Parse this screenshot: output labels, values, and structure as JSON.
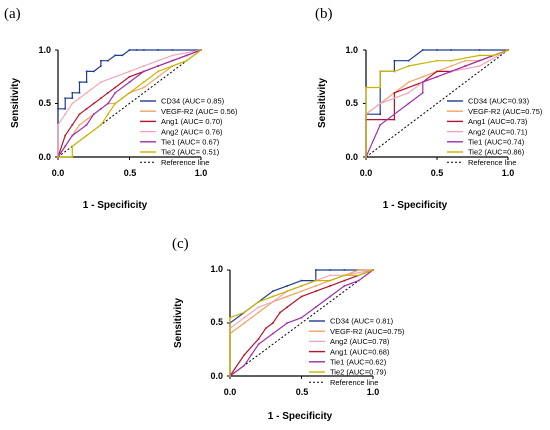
{
  "chart_data": [
    {
      "panel": "(a)",
      "type": "line",
      "xlabel": "1 - Specificity",
      "ylabel": "Sensitivity",
      "xlim": [
        0,
        1
      ],
      "ylim": [
        0,
        1
      ],
      "xticks": [
        "0.0",
        "0.5",
        "1.0"
      ],
      "yticks": [
        "0.0",
        "0.5",
        "1.0"
      ],
      "legend_position": "lower-right",
      "reference_line": "Reference line",
      "series": [
        {
          "name": "CD34 (AUC= 0.85)",
          "color": "#1f3a93",
          "x": [
            0,
            0,
            0.05,
            0.05,
            0.1,
            0.1,
            0.15,
            0.15,
            0.2,
            0.2,
            0.25,
            0.3,
            0.3,
            0.35,
            0.4,
            0.45,
            0.5,
            0.55,
            0.6,
            0.7,
            0.8,
            1.0
          ],
          "y": [
            0,
            0.45,
            0.45,
            0.55,
            0.55,
            0.6,
            0.6,
            0.7,
            0.7,
            0.8,
            0.8,
            0.85,
            0.9,
            0.9,
            0.95,
            0.95,
            1.0,
            1.0,
            1.0,
            1.0,
            1.0,
            1.0
          ]
        },
        {
          "name": "VEGF-R2 (AUC= 0.56)",
          "color": "#f4a261",
          "x": [
            0,
            0.05,
            0.1,
            0.15,
            0.2,
            0.25,
            0.3,
            0.35,
            0.4,
            0.45,
            0.5,
            0.6,
            0.7,
            0.8,
            0.9,
            1.0
          ],
          "y": [
            0,
            0.1,
            0.2,
            0.3,
            0.35,
            0.4,
            0.45,
            0.5,
            0.5,
            0.55,
            0.6,
            0.65,
            0.75,
            0.85,
            0.9,
            1.0
          ]
        },
        {
          "name": "Ang1  (AUC= 0.70)",
          "color": "#b5122b",
          "x": [
            0,
            0.05,
            0.1,
            0.15,
            0.2,
            0.25,
            0.3,
            0.35,
            0.4,
            0.5,
            0.6,
            0.7,
            0.8,
            0.9,
            1.0
          ],
          "y": [
            0,
            0.2,
            0.3,
            0.4,
            0.45,
            0.5,
            0.55,
            0.6,
            0.65,
            0.75,
            0.8,
            0.85,
            0.9,
            0.95,
            1.0
          ]
        },
        {
          "name": "Ang2  (AUC= 0.76)",
          "color": "#f2a5b8",
          "x": [
            0,
            0,
            0.05,
            0.1,
            0.15,
            0.2,
            0.3,
            0.4,
            0.5,
            0.6,
            0.7,
            0.8,
            1.0
          ],
          "y": [
            0,
            0.3,
            0.4,
            0.5,
            0.55,
            0.6,
            0.7,
            0.75,
            0.8,
            0.85,
            0.9,
            0.95,
            1.0
          ]
        },
        {
          "name": "Tie1  (AUC= 0.67)",
          "color": "#9b30b0",
          "x": [
            0,
            0.05,
            0.1,
            0.2,
            0.25,
            0.3,
            0.35,
            0.4,
            0.5,
            0.6,
            0.7,
            0.8,
            1.0
          ],
          "y": [
            0,
            0.1,
            0.2,
            0.3,
            0.4,
            0.45,
            0.5,
            0.6,
            0.7,
            0.8,
            0.85,
            0.9,
            1.0
          ]
        },
        {
          "name": "Tie2  (AUC= 0.51)",
          "color": "#c8b400",
          "x": [
            0,
            0.1,
            0.1,
            0.2,
            0.3,
            0.35,
            0.4,
            0.5,
            0.6,
            0.7,
            0.8,
            0.9,
            1.0
          ],
          "y": [
            0,
            0,
            0.1,
            0.2,
            0.3,
            0.4,
            0.5,
            0.6,
            0.7,
            0.8,
            0.85,
            0.9,
            1.0
          ]
        }
      ]
    },
    {
      "panel": "(b)",
      "type": "line",
      "xlabel": "1 - Specificity",
      "ylabel": "Sensitivity",
      "xlim": [
        0,
        1
      ],
      "ylim": [
        0,
        1
      ],
      "xticks": [
        "0.0",
        "0.5",
        "1.0"
      ],
      "yticks": [
        "0.0",
        "0.5",
        "1.0"
      ],
      "legend_position": "lower-right",
      "reference_line": "Reference line",
      "series": [
        {
          "name": "CD34 (AUC=0.93)",
          "color": "#1f3a93",
          "x": [
            0,
            0,
            0.1,
            0.1,
            0.2,
            0.2,
            0.3,
            0.4,
            0.5,
            0.6,
            0.8,
            1.0
          ],
          "y": [
            0,
            0.4,
            0.4,
            0.8,
            0.8,
            0.9,
            0.9,
            1.0,
            1.0,
            1.0,
            1.0,
            1.0
          ]
        },
        {
          "name": "VEGF-R2 (AUC=0.75)",
          "color": "#f4a261",
          "x": [
            0,
            0,
            0.1,
            0.2,
            0.3,
            0.4,
            0.5,
            0.6,
            0.7,
            0.8,
            0.9,
            1.0
          ],
          "y": [
            0,
            0.4,
            0.5,
            0.6,
            0.7,
            0.75,
            0.8,
            0.85,
            0.9,
            0.9,
            0.95,
            1.0
          ]
        },
        {
          "name": "Ang1  (AUC=0.73)",
          "color": "#b5122b",
          "x": [
            0,
            0,
            0.2,
            0.2,
            0.4,
            0.5,
            0.6,
            0.7,
            0.8,
            1.0
          ],
          "y": [
            0,
            0.35,
            0.35,
            0.6,
            0.7,
            0.8,
            0.8,
            0.85,
            0.9,
            1.0
          ]
        },
        {
          "name": "Ang2  (AUC=0.71)",
          "color": "#f2a5b8",
          "x": [
            0,
            0,
            0.1,
            0.2,
            0.3,
            0.4,
            0.5,
            0.6,
            0.8,
            1.0
          ],
          "y": [
            0,
            0.4,
            0.5,
            0.55,
            0.6,
            0.7,
            0.75,
            0.8,
            0.85,
            1.0
          ]
        },
        {
          "name": "Tie1  (AUC=0.74)",
          "color": "#9b30b0",
          "x": [
            0,
            0.1,
            0.2,
            0.3,
            0.4,
            0.4,
            0.5,
            0.6,
            0.7,
            0.8,
            1.0
          ],
          "y": [
            0,
            0.3,
            0.4,
            0.5,
            0.6,
            0.7,
            0.75,
            0.8,
            0.85,
            0.9,
            1.0
          ]
        },
        {
          "name": "Tie2  (AUC=0.86)",
          "color": "#c8b400",
          "x": [
            0,
            0,
            0.1,
            0.1,
            0.2,
            0.3,
            0.5,
            0.6,
            0.8,
            0.9,
            1.0
          ],
          "y": [
            0,
            0.65,
            0.65,
            0.8,
            0.8,
            0.85,
            0.9,
            0.9,
            0.95,
            0.95,
            1.0
          ]
        }
      ]
    },
    {
      "panel": "(c)",
      "type": "line",
      "xlabel": "1 - Specificity",
      "ylabel": "Sensitivity",
      "xlim": [
        0,
        1
      ],
      "ylim": [
        0,
        1
      ],
      "xticks": [
        "0.0",
        "0.5",
        "1.0"
      ],
      "yticks": [
        "0.0",
        "0.5",
        "1.0"
      ],
      "legend_position": "lower-right",
      "reference_line": "Reference line",
      "series": [
        {
          "name": "CD34 (AUC= 0.81)",
          "color": "#1f3a93",
          "x": [
            0,
            0,
            0.1,
            0.2,
            0.3,
            0.4,
            0.5,
            0.6,
            0.6,
            0.7,
            0.8,
            1.0
          ],
          "y": [
            0,
            0.5,
            0.6,
            0.7,
            0.8,
            0.85,
            0.9,
            0.9,
            1.0,
            1.0,
            1.0,
            1.0
          ]
        },
        {
          "name": "VEGF-R2 (AUC=0.75)",
          "color": "#f4a261",
          "x": [
            0,
            0,
            0.1,
            0.2,
            0.3,
            0.4,
            0.5,
            0.6,
            0.7,
            0.8,
            0.9,
            1.0
          ],
          "y": [
            0,
            0.4,
            0.5,
            0.6,
            0.7,
            0.75,
            0.8,
            0.85,
            0.9,
            0.95,
            1.0,
            1.0
          ]
        },
        {
          "name": "Ang2 (AUC=0.78)",
          "color": "#f2a5b8",
          "x": [
            0,
            0,
            0.1,
            0.2,
            0.3,
            0.4,
            0.5,
            0.6,
            0.7,
            0.8,
            1.0
          ],
          "y": [
            0,
            0.45,
            0.55,
            0.65,
            0.7,
            0.8,
            0.85,
            0.9,
            0.95,
            0.95,
            1.0
          ]
        },
        {
          "name": "Ang1 (AUC=0.68)",
          "color": "#b5122b",
          "x": [
            0,
            0.1,
            0.2,
            0.25,
            0.3,
            0.35,
            0.4,
            0.5,
            0.6,
            0.7,
            0.8,
            0.9,
            1.0
          ],
          "y": [
            0,
            0.2,
            0.35,
            0.45,
            0.5,
            0.6,
            0.65,
            0.75,
            0.8,
            0.85,
            0.9,
            0.95,
            1.0
          ]
        },
        {
          "name": "Tie1 (AUC=0.62)",
          "color": "#9b30b0",
          "x": [
            0,
            0.1,
            0.15,
            0.2,
            0.3,
            0.4,
            0.5,
            0.6,
            0.7,
            0.8,
            0.9,
            1.0
          ],
          "y": [
            0,
            0.1,
            0.2,
            0.3,
            0.4,
            0.5,
            0.55,
            0.65,
            0.75,
            0.85,
            0.9,
            1.0
          ]
        },
        {
          "name": "Tie2 (AUC=0.79)",
          "color": "#c8b400",
          "x": [
            0,
            0,
            0.1,
            0.2,
            0.3,
            0.4,
            0.5,
            0.6,
            0.7,
            0.8,
            0.9,
            1.0
          ],
          "y": [
            0,
            0.55,
            0.6,
            0.7,
            0.75,
            0.8,
            0.85,
            0.9,
            0.9,
            0.95,
            0.95,
            1.0
          ]
        }
      ]
    }
  ]
}
